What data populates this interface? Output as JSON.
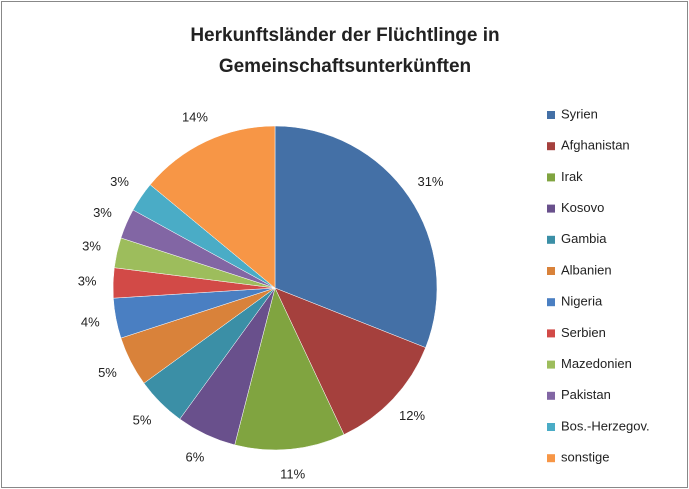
{
  "chart_data": {
    "type": "pie",
    "title": [
      "Herkunftsländer der Flüchtlinge in",
      "Gemeinschaftsunterkünften"
    ],
    "categories": [
      "Syrien",
      "Afghanistan",
      "Irak",
      "Kosovo",
      "Gambia",
      "Albanien",
      "Nigeria",
      "Serbien",
      "Mazedonien",
      "Pakistan",
      "Bos.-Herzegov.",
      "sonstige"
    ],
    "values": [
      31,
      12,
      11,
      6,
      5,
      5,
      4,
      3,
      3,
      3,
      3,
      14
    ],
    "value_labels": [
      "31%",
      "12%",
      "11%",
      "6%",
      "5%",
      "5%",
      "4%",
      "3%",
      "3%",
      "3%",
      "3%",
      "14%"
    ],
    "colors": [
      "#4470a6",
      "#a5403d",
      "#80a440",
      "#69508c",
      "#3b8fa6",
      "#d9823a",
      "#4a7fc2",
      "#d24a47",
      "#9dbd5c",
      "#8266a4",
      "#4aacc6",
      "#f79646"
    ],
    "legend": "right"
  }
}
